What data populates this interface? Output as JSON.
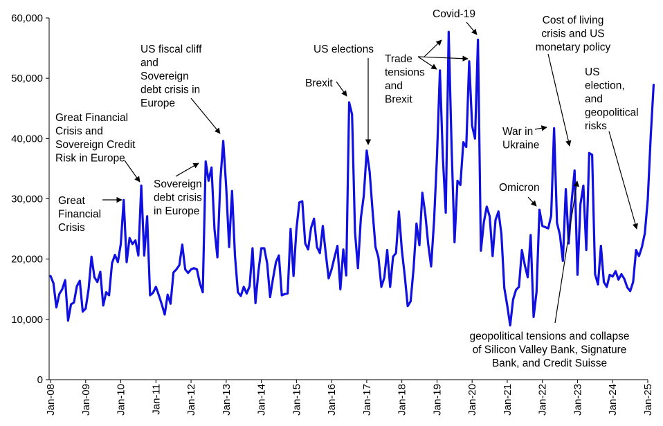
{
  "chart_data": {
    "type": "line",
    "title": "",
    "xlabel": "",
    "ylabel": "",
    "ylim": [
      0,
      60000
    ],
    "y_ticks": [
      "0",
      "10,000",
      "20,000",
      "30,000",
      "40,000",
      "50,000",
      "60,000"
    ],
    "x_ticks": [
      "Jan-08",
      "Jan-09",
      "Jan-10",
      "Jan-11",
      "Jan-12",
      "Jan-13",
      "Jan-14",
      "Jan-15",
      "Jan-16",
      "Jan-17",
      "Jan-18",
      "Jan-19",
      "Jan-20",
      "Jan-21",
      "Jan-22",
      "Jan-23",
      "Jan-24",
      "Jan-25"
    ],
    "grid": false,
    "legend": "none",
    "line_color": "#1010e0",
    "series": [
      {
        "x_start": "Jan-08",
        "frequency": "monthly",
        "values": [
          17200,
          16000,
          12000,
          14200,
          15000,
          16500,
          9800,
          12500,
          12800,
          15500,
          16400,
          11300,
          11800,
          15000,
          20400,
          17000,
          16200,
          17900,
          12300,
          14500,
          14000,
          19300,
          20700,
          19500,
          22500,
          29800,
          19500,
          23500,
          22500,
          23100,
          20600,
          32200,
          20600,
          27100,
          14000,
          14400,
          15400,
          14000,
          12500,
          10800,
          14100,
          12600,
          17800,
          18300,
          19000,
          22400,
          18300,
          17700,
          18300,
          18500,
          18300,
          16000,
          14500,
          36200,
          33000,
          35200,
          25000,
          20300,
          33000,
          39600,
          32000,
          22000,
          31300,
          20600,
          14500,
          13900,
          15400,
          14300,
          15500,
          21800,
          12700,
          17900,
          21800,
          21800,
          19300,
          13700,
          16800,
          19500,
          20600,
          14000,
          14200,
          14300,
          25000,
          17200,
          25000,
          29400,
          29600,
          22600,
          21600,
          25200,
          26700,
          22000,
          21000,
          25500,
          21000,
          16800,
          18300,
          20300,
          22200,
          15000,
          21600,
          17300,
          46000,
          44000,
          24500,
          18500,
          26800,
          30500,
          38000,
          34500,
          28000,
          22000,
          20300,
          15400,
          16900,
          21500,
          15400,
          20400,
          21000,
          27900,
          21500,
          17200,
          12200,
          13000,
          18400,
          25900,
          22300,
          31000,
          27500,
          22500,
          18800,
          26300,
          37000,
          51300,
          37000,
          27700,
          57700,
          38500,
          22800,
          33000,
          32300,
          39400,
          38600,
          52800,
          42100,
          40000,
          56400,
          21400,
          26100,
          28700,
          27100,
          20500,
          26500,
          27900,
          24200,
          15200,
          12300,
          9000,
          13300,
          14900,
          15400,
          21500,
          19000,
          17000,
          24000,
          10400,
          14500,
          28200,
          25500,
          25300,
          25100,
          27200,
          41700,
          26000,
          24000,
          19700,
          31600,
          22600,
          29600,
          34700,
          17400,
          29100,
          32200,
          21500,
          37600,
          37300,
          17500,
          15800,
          22200,
          16200,
          15400,
          17400,
          17100,
          18000,
          16600,
          17500,
          16700,
          15300,
          14700,
          16200,
          21500,
          20500,
          22000,
          24300,
          29900,
          40300,
          48900
        ]
      }
    ],
    "annotations": [
      {
        "id": "gfc-crisis",
        "lines": [
          "Great",
          "Financial",
          "Crisis"
        ]
      },
      {
        "id": "gfc-sovereign",
        "lines": [
          "Great Financial",
          "Crisis and",
          "Sovereign Credit",
          "Risk in Europe"
        ]
      },
      {
        "id": "sovereign-debt",
        "lines": [
          "Sovereign",
          "debt crisis",
          "in Europe"
        ]
      },
      {
        "id": "fiscal-cliff",
        "lines": [
          "US fiscal cliff",
          "and",
          "Sovereign",
          "debt crisis in",
          "Europe"
        ]
      },
      {
        "id": "brexit",
        "lines": [
          "Brexit"
        ]
      },
      {
        "id": "us-elections",
        "lines": [
          "US elections"
        ]
      },
      {
        "id": "trade-brexit",
        "lines": [
          "Trade",
          "tensions",
          "and",
          "Brexit"
        ]
      },
      {
        "id": "covid",
        "lines": [
          "Covid-19"
        ]
      },
      {
        "id": "war-ukraine",
        "lines": [
          "War in",
          "Ukraine"
        ]
      },
      {
        "id": "omicron",
        "lines": [
          "Omicron"
        ]
      },
      {
        "id": "cost-living",
        "lines": [
          "Cost of living",
          "crisis and US",
          "monetary policy"
        ]
      },
      {
        "id": "us-election-geo",
        "lines": [
          "US",
          "election,",
          "and",
          "geopolitical",
          "risks"
        ]
      },
      {
        "id": "svb",
        "lines": [
          "geopolitical tensions and collapse",
          "of Silicon Valley Bank, Signature",
          "Bank, and Credit Suisse"
        ]
      }
    ]
  }
}
